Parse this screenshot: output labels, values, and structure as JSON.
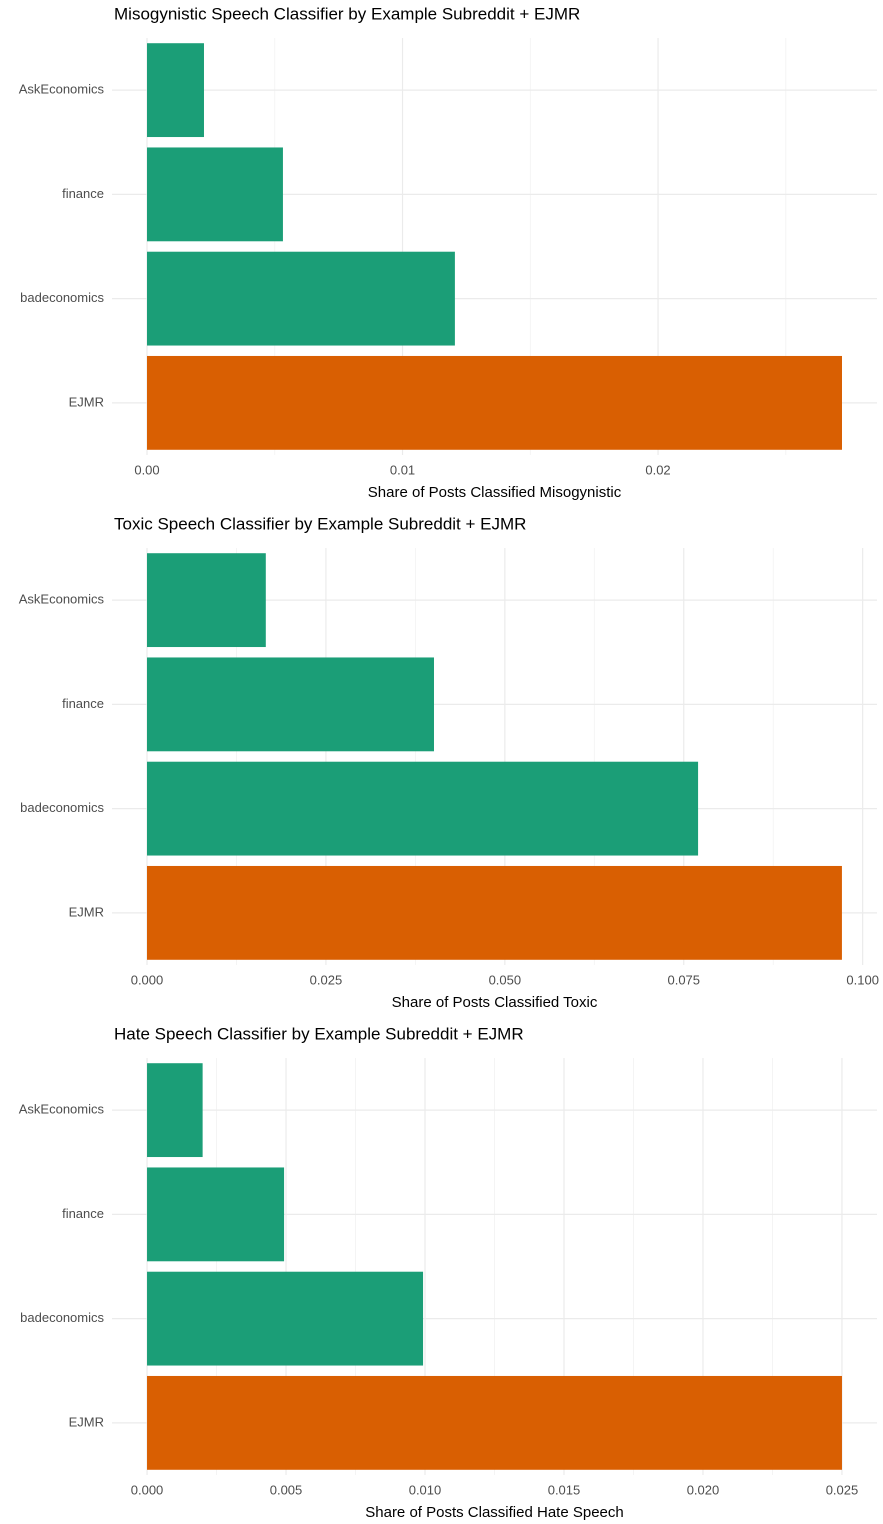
{
  "chart_data": [
    {
      "type": "barh",
      "title": "Misogynistic Speech Classifier by Example Subreddit + EJMR",
      "x_label": "Share of Posts Classified Misogynistic",
      "categories": [
        "AskEconomics",
        "finance",
        "badeconomics",
        "EJMR"
      ],
      "values": [
        0.00223,
        0.00532,
        0.01205,
        0.0272
      ],
      "colors": [
        "#1b9e77",
        "#1b9e77",
        "#1b9e77",
        "#d95f02"
      ],
      "xlim": [
        -0.00137,
        0.02857
      ],
      "xticks": [
        {
          "value": 0,
          "label": "0.00"
        },
        0.01,
        0.02
      ],
      "xminor": [
        0.005,
        0.015,
        0.025
      ],
      "grid": true
    },
    {
      "type": "barh",
      "title": "Toxic Speech Classifier by Example Subreddit + EJMR",
      "x_label": "Share of Posts Classified Toxic",
      "categories": [
        "AskEconomics",
        "finance",
        "badeconomics",
        "EJMR"
      ],
      "values": [
        0.0166,
        0.0401,
        0.077,
        0.0971
      ],
      "colors": [
        "#1b9e77",
        "#1b9e77",
        "#1b9e77",
        "#d95f02"
      ],
      "xlim": [
        -0.00489,
        0.102
      ],
      "xticks": [
        {
          "value": 0,
          "label": "0.000"
        },
        0.025,
        {
          "value": 0.05,
          "label": "0.050"
        },
        0.075,
        {
          "value": 0.1,
          "label": "0.100"
        }
      ],
      "xminor": [
        0.0125,
        0.0375,
        0.0625,
        0.0875
      ],
      "grid": true
    },
    {
      "type": "barh",
      "title": "Hate Speech Classifier by Example Subreddit + EJMR",
      "x_label": "Share of Posts Classified Hate Speech",
      "categories": [
        "AskEconomics",
        "finance",
        "badeconomics",
        "EJMR"
      ],
      "values": [
        0.002,
        0.00493,
        0.00993,
        0.025
      ],
      "colors": [
        "#1b9e77",
        "#1b9e77",
        "#1b9e77",
        "#d95f02"
      ],
      "xlim": [
        -0.00126,
        0.02626
      ],
      "xticks": [
        {
          "value": 0,
          "label": "0.000"
        },
        0.005,
        {
          "value": 0.01,
          "label": "0.010"
        },
        0.015,
        {
          "value": 0.02,
          "label": "0.020"
        },
        0.025
      ],
      "xminor": [
        0.0025,
        0.0075,
        0.0125,
        0.0175,
        0.0225
      ],
      "grid": true
    }
  ]
}
